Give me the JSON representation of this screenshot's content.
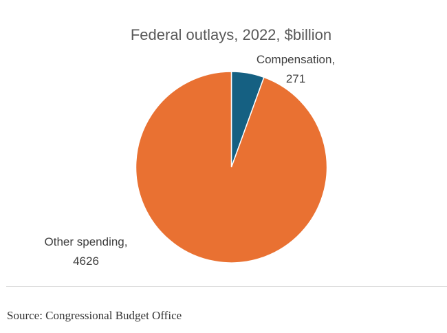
{
  "chart_data": {
    "type": "pie",
    "title": "Federal outlays, 2022, $billion",
    "categories": [
      "Compensation",
      "Other spending"
    ],
    "values": [
      271,
      4626
    ],
    "colors": [
      "#156082",
      "#E97132"
    ],
    "start_angle_deg": 0,
    "direction": "clockwise",
    "data_labels": [
      "Compensation,",
      "271",
      "Other spending,",
      "4626"
    ],
    "legend": "none"
  },
  "footer": {
    "source": "Source: Congressional Budget Office"
  }
}
